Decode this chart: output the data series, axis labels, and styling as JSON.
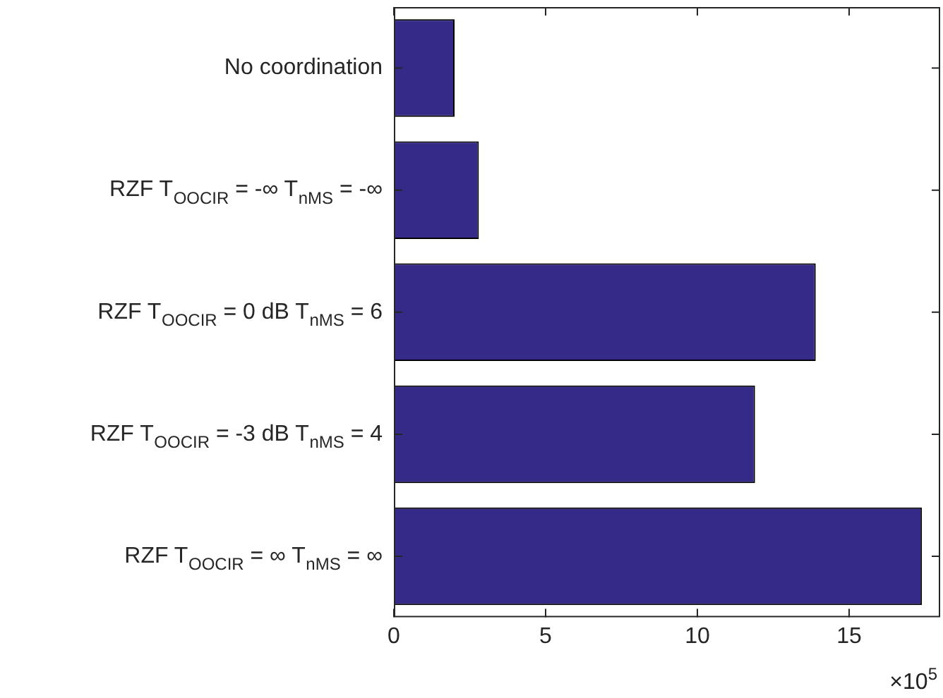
{
  "chart_data": {
    "type": "bar",
    "orientation": "horizontal",
    "categories": [
      "No coordination",
      "RZF T$_{OOCIR}$ = -∞ T$_{nMS}$ = -∞",
      "RZF T$_{OOCIR}$ = 0 dB T$_{nMS}$ = 6",
      "RZF T$_{OOCIR}$ = -3 dB T$_{nMS}$ = 4",
      "RZF T$_{OOCIR}$ = ∞ T$_{nMS}$ = ∞"
    ],
    "values": [
      2.0,
      2.8,
      13.9,
      11.9,
      17.4
    ],
    "color": "#352a87",
    "xlim": [
      0,
      18
    ],
    "xticks": [
      0,
      5,
      10,
      15
    ],
    "annotations": [
      "×10$^{5}$"
    ]
  }
}
